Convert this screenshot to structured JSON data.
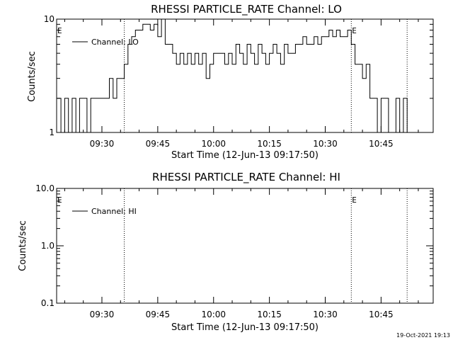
{
  "chart_data": [
    {
      "type": "line",
      "title": "RHESSI PARTICLE_RATE Channel: LO",
      "xlabel": "Start Time (12-Jun-13 09:17:50)",
      "ylabel": "Counts/sec",
      "yscale": "log",
      "xlim": [
        "09:17:50",
        "10:59:00"
      ],
      "ylim": [
        1,
        10
      ],
      "x_ticks": [
        "09:30",
        "09:45",
        "10:00",
        "10:15",
        "10:30",
        "10:45"
      ],
      "y_ticks": [
        "1",
        "10"
      ],
      "legend_position": "top-left",
      "markers": [
        {
          "label": "E",
          "time": "09:17:50"
        },
        {
          "label": "E",
          "time": "10:37:00"
        }
      ],
      "vlines": [
        "09:36:00",
        "10:37:00",
        "10:52:00"
      ],
      "series": [
        {
          "name": "Channel: LO",
          "x": [
            "09:18",
            "09:19",
            "09:20",
            "09:21",
            "09:22",
            "09:23",
            "09:24",
            "09:25",
            "09:26",
            "09:27",
            "09:28",
            "09:29",
            "09:30",
            "09:31",
            "09:32",
            "09:33",
            "09:34",
            "09:35",
            "09:36",
            "09:37",
            "09:38",
            "09:39",
            "09:40",
            "09:41",
            "09:42",
            "09:43",
            "09:44",
            "09:45",
            "09:46",
            "09:47",
            "09:48",
            "09:49",
            "09:50",
            "09:51",
            "09:52",
            "09:53",
            "09:54",
            "09:55",
            "09:56",
            "09:57",
            "09:58",
            "09:59",
            "10:00",
            "10:01",
            "10:02",
            "10:03",
            "10:04",
            "10:05",
            "10:06",
            "10:07",
            "10:08",
            "10:09",
            "10:10",
            "10:11",
            "10:12",
            "10:13",
            "10:14",
            "10:15",
            "10:16",
            "10:17",
            "10:18",
            "10:19",
            "10:20",
            "10:21",
            "10:22",
            "10:23",
            "10:24",
            "10:25",
            "10:26",
            "10:27",
            "10:28",
            "10:29",
            "10:30",
            "10:31",
            "10:32",
            "10:33",
            "10:34",
            "10:35",
            "10:36",
            "10:37",
            "10:38",
            "10:39",
            "10:40",
            "10:41",
            "10:42",
            "10:43",
            "10:44",
            "10:45",
            "10:46",
            "10:47",
            "10:48",
            "10:49",
            "10:50",
            "10:51",
            "10:52"
          ],
          "values": [
            2,
            1,
            2,
            1,
            2,
            1,
            2,
            2,
            1,
            2,
            2,
            2,
            2,
            2,
            3,
            2,
            3,
            3,
            4,
            6,
            7,
            8,
            8,
            9,
            9,
            8,
            9,
            7,
            10,
            6,
            6,
            5,
            4,
            5,
            4,
            5,
            4,
            5,
            4,
            5,
            3,
            4,
            5,
            5,
            5,
            4,
            5,
            4,
            6,
            5,
            4,
            6,
            5,
            4,
            6,
            5,
            4,
            5,
            6,
            5,
            4,
            6,
            5,
            5,
            6,
            6,
            7,
            6,
            6,
            7,
            6,
            7,
            7,
            8,
            7,
            8,
            7,
            7,
            8,
            6,
            4,
            4,
            3,
            4,
            2,
            2,
            1,
            2,
            2,
            1,
            1,
            2,
            1,
            2,
            1
          ]
        }
      ]
    },
    {
      "type": "line",
      "title": "RHESSI PARTICLE_RATE Channel: HI",
      "xlabel": "Start Time (12-Jun-13 09:17:50)",
      "ylabel": "Counts/sec",
      "yscale": "log",
      "xlim": [
        "09:17:50",
        "10:59:00"
      ],
      "ylim": [
        0.1,
        10
      ],
      "x_ticks": [
        "09:30",
        "09:45",
        "10:00",
        "10:15",
        "10:30",
        "10:45"
      ],
      "y_ticks": [
        "0.1",
        "1.0",
        "10.0"
      ],
      "legend_position": "top-left",
      "markers": [
        {
          "label": "E",
          "time": "09:17:50"
        },
        {
          "label": "E",
          "time": "10:37:00"
        }
      ],
      "vlines": [
        "09:36:00",
        "10:37:00",
        "10:52:00"
      ],
      "series": [
        {
          "name": "Channel: HI",
          "x": [],
          "values": []
        }
      ]
    }
  ],
  "footer": {
    "timestamp": "19-Oct-2021 19:13"
  }
}
